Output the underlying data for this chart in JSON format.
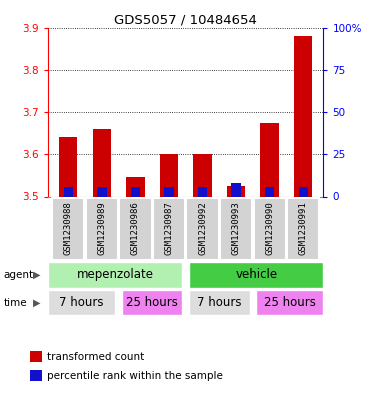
{
  "title": "GDS5057 / 10484654",
  "samples": [
    "GSM1230988",
    "GSM1230989",
    "GSM1230986",
    "GSM1230987",
    "GSM1230992",
    "GSM1230993",
    "GSM1230990",
    "GSM1230991"
  ],
  "red_values": [
    3.64,
    3.66,
    3.545,
    3.6,
    3.6,
    3.525,
    3.675,
    3.88
  ],
  "blue_values_pct": [
    5.5,
    5.5,
    5.5,
    5.5,
    5.5,
    8.0,
    5.5,
    5.5
  ],
  "ylim": [
    3.5,
    3.9
  ],
  "yticks": [
    3.5,
    3.6,
    3.7,
    3.8,
    3.9
  ],
  "y2lim": [
    0,
    100
  ],
  "y2ticks": [
    0,
    25,
    50,
    75,
    100
  ],
  "y2ticklabels": [
    "0",
    "25",
    "50",
    "75",
    "100%"
  ],
  "bar_width": 0.55,
  "blue_bar_width": 0.28,
  "red_color": "#cc0000",
  "blue_color": "#1111cc",
  "agent_color_light": "#b2f0b2",
  "agent_color_dark": "#44cc44",
  "time_color_light": "#dddddd",
  "time_color_pink": "#ee82ee",
  "legend_red": "transformed count",
  "legend_blue": "percentile rank within the sample",
  "baseline": 3.5,
  "bg_gray": "#d3d3d3",
  "spine_color": "#888888"
}
